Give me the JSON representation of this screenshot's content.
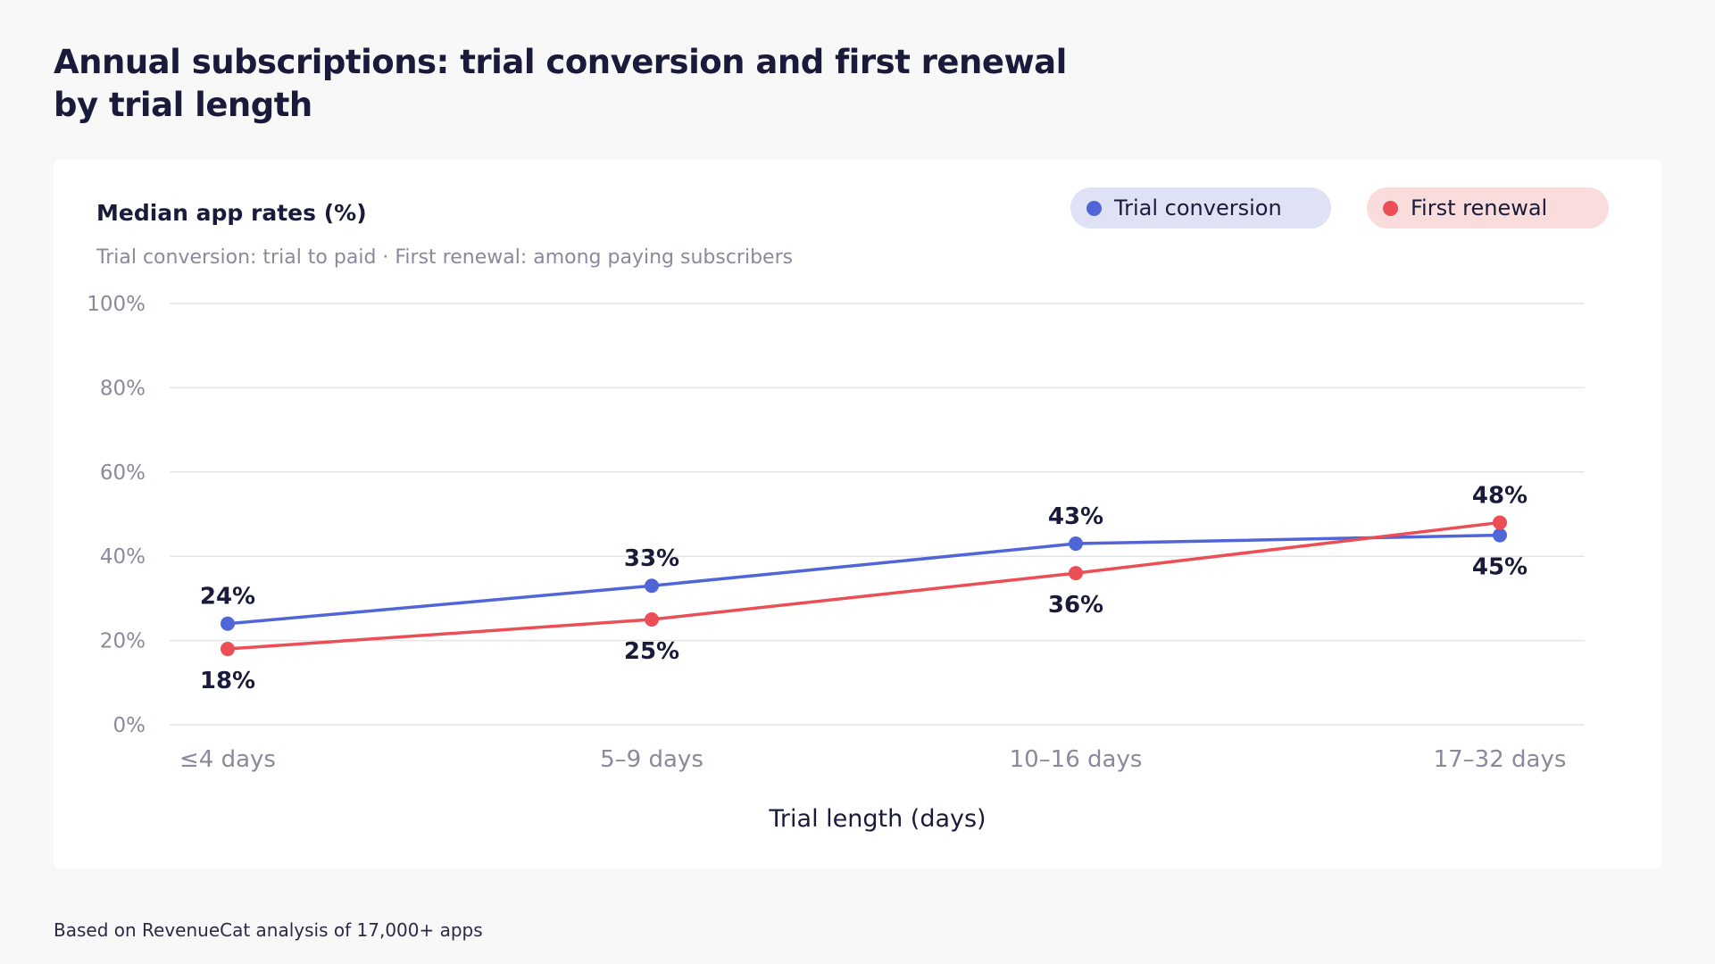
{
  "title_lines": [
    "Annual subscriptions: trial conversion and first renewal",
    "by trial length"
  ],
  "card": {
    "title": "Median app rates (%)",
    "subtitle": "Trial conversion: trial to paid · First renewal: among paying subscribers"
  },
  "legend": {
    "trial_label": "Trial conversion",
    "renewal_label": "First renewal"
  },
  "footnote": "Based on RevenueCat analysis of 17,000+ apps",
  "colors": {
    "trial": "#5066d8",
    "renewal": "#ec4e55",
    "grid": "#e4e4ea"
  },
  "chart_data": {
    "type": "line",
    "xlabel": "Trial length (days)",
    "ylabel": "",
    "categories": [
      "≤4 days",
      "5–9 days",
      "10–16 days",
      "17–32 days"
    ],
    "ylim": [
      0,
      100
    ],
    "yticks": [
      0,
      20,
      40,
      60,
      80,
      100
    ],
    "ytick_labels": [
      "0%",
      "20%",
      "40%",
      "60%",
      "80%",
      "100%"
    ],
    "grid": true,
    "legend_position": "top-right",
    "series": [
      {
        "name": "Trial conversion",
        "values": [
          24,
          33,
          43,
          45
        ],
        "labels": [
          "24%",
          "33%",
          "43%",
          "45%"
        ]
      },
      {
        "name": "First renewal",
        "values": [
          18,
          25,
          36,
          48
        ],
        "labels": [
          "18%",
          "25%",
          "36%",
          "48%"
        ]
      }
    ]
  }
}
